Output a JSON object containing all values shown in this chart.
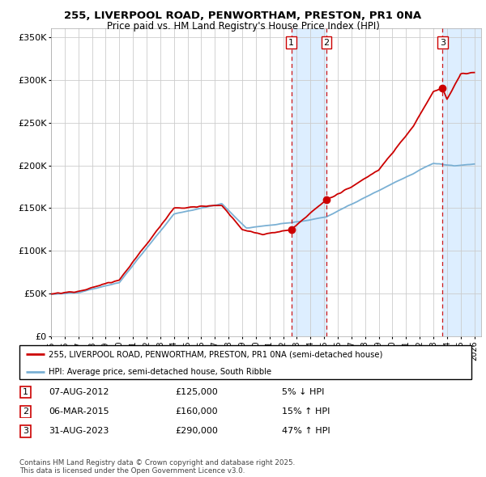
{
  "title": "255, LIVERPOOL ROAD, PENWORTHAM, PRESTON, PR1 0NA",
  "subtitle": "Price paid vs. HM Land Registry's House Price Index (HPI)",
  "legend_line1": "255, LIVERPOOL ROAD, PENWORTHAM, PRESTON, PR1 0NA (semi-detached house)",
  "legend_line2": "HPI: Average price, semi-detached house, South Ribble",
  "footer": "Contains HM Land Registry data © Crown copyright and database right 2025.\nThis data is licensed under the Open Government Licence v3.0.",
  "sales": [
    {
      "num": 1,
      "date": "07-AUG-2012",
      "price": 125000,
      "pct": "5%",
      "dir": "↓"
    },
    {
      "num": 2,
      "date": "06-MAR-2015",
      "price": 160000,
      "pct": "15%",
      "dir": "↑"
    },
    {
      "num": 3,
      "date": "31-AUG-2023",
      "price": 290000,
      "pct": "47%",
      "dir": "↑"
    }
  ],
  "sale_dates_decimal": [
    2012.6,
    2015.17,
    2023.67
  ],
  "red_line_color": "#cc0000",
  "blue_line_color": "#7ab0d4",
  "shade_color": "#ddeeff",
  "vline_color": "#cc0000",
  "marker_box_color": "#cc0000",
  "ylim": [
    0,
    360000
  ],
  "xlim_start": 1995.0,
  "xlim_end": 2026.5,
  "background_color": "#ffffff",
  "grid_color": "#cccccc"
}
